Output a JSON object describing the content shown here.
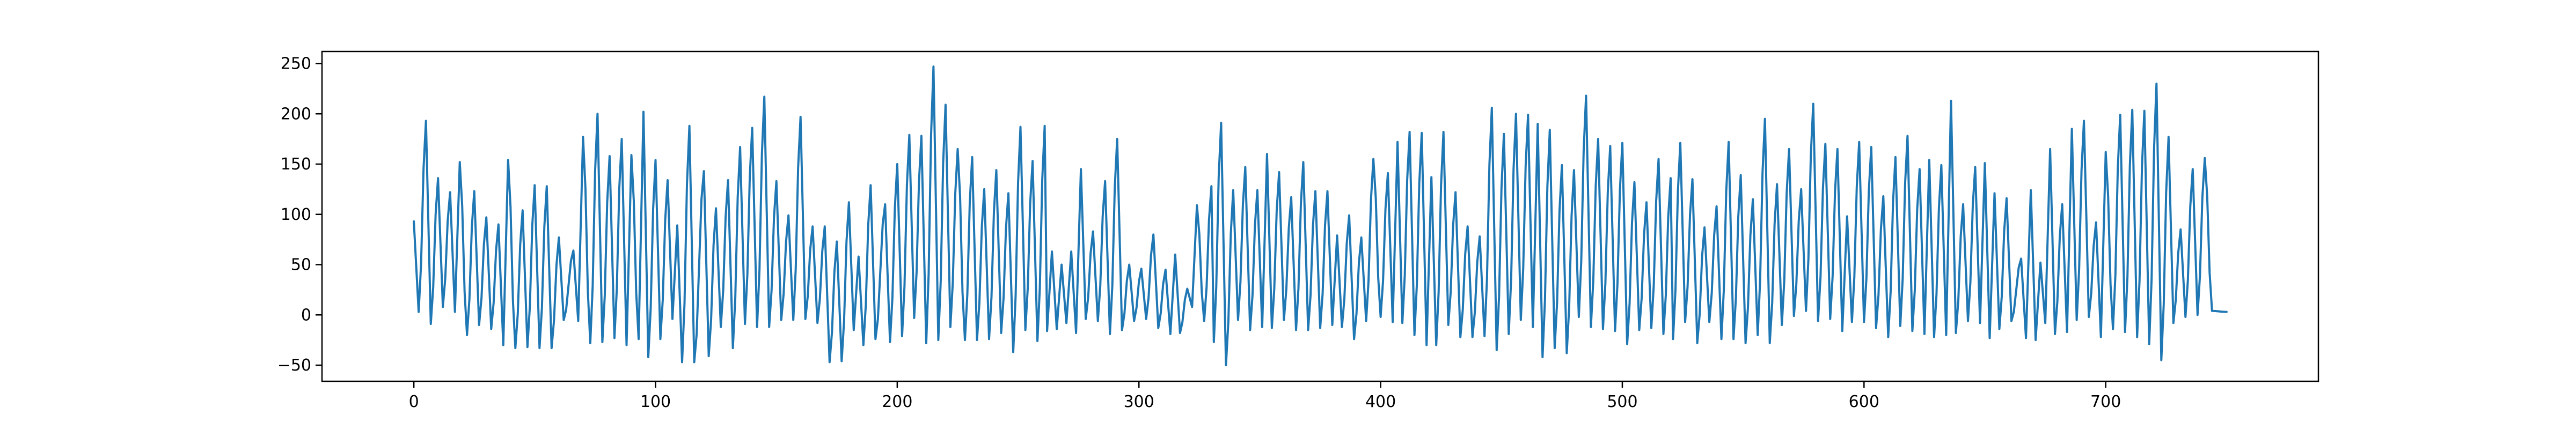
{
  "chart_data": {
    "type": "line",
    "title": "",
    "xlabel": "",
    "ylabel": "",
    "xlim": [
      -38,
      788
    ],
    "ylim": [
      -66,
      262
    ],
    "xticks": [
      0,
      100,
      200,
      300,
      400,
      500,
      600,
      700
    ],
    "yticks": [
      -50,
      0,
      50,
      100,
      150,
      200,
      250
    ],
    "grid": false,
    "legend": "none",
    "x_start": 0,
    "x_end": 750,
    "series": [
      {
        "color": "#1f77b4",
        "peaks": [
          [
            0,
            93
          ],
          [
            5,
            193
          ],
          [
            10,
            136
          ],
          [
            15,
            122
          ],
          [
            19,
            152
          ],
          [
            25,
            123
          ],
          [
            30,
            97
          ],
          [
            35,
            90
          ],
          [
            39,
            154
          ],
          [
            45,
            104
          ],
          [
            50,
            129
          ],
          [
            55,
            128
          ],
          [
            60,
            77
          ],
          [
            66,
            64
          ],
          [
            70,
            177
          ],
          [
            76,
            200
          ],
          [
            81,
            158
          ],
          [
            86,
            175
          ],
          [
            90,
            159
          ],
          [
            95,
            202
          ],
          [
            100,
            154
          ],
          [
            105,
            134
          ],
          [
            109,
            89
          ],
          [
            114,
            188
          ],
          [
            120,
            143
          ],
          [
            125,
            106
          ],
          [
            130,
            134
          ],
          [
            135,
            167
          ],
          [
            140,
            186
          ],
          [
            145,
            217
          ],
          [
            150,
            133
          ],
          [
            155,
            99
          ],
          [
            160,
            197
          ],
          [
            165,
            88
          ],
          [
            170,
            88
          ],
          [
            175,
            73
          ],
          [
            180,
            112
          ],
          [
            184,
            58
          ],
          [
            189,
            129
          ],
          [
            195,
            110
          ],
          [
            200,
            150
          ],
          [
            205,
            179
          ],
          [
            210,
            178
          ],
          [
            215,
            247
          ],
          [
            220,
            209
          ],
          [
            225,
            165
          ],
          [
            231,
            157
          ],
          [
            236,
            125
          ],
          [
            241,
            144
          ],
          [
            246,
            121
          ],
          [
            251,
            187
          ],
          [
            256,
            153
          ],
          [
            261,
            188
          ],
          [
            264,
            63
          ],
          [
            268,
            50
          ],
          [
            272,
            63
          ],
          [
            276,
            145
          ],
          [
            281,
            83
          ],
          [
            286,
            133
          ],
          [
            291,
            175
          ],
          [
            296,
            50
          ],
          [
            301,
            46
          ],
          [
            306,
            80
          ],
          [
            311,
            45
          ],
          [
            315,
            60
          ],
          [
            320,
            26
          ],
          [
            324,
            109
          ],
          [
            330,
            128
          ],
          [
            334,
            191
          ],
          [
            339,
            124
          ],
          [
            344,
            147
          ],
          [
            349,
            124
          ],
          [
            353,
            160
          ],
          [
            358,
            142
          ],
          [
            363,
            117
          ],
          [
            368,
            152
          ],
          [
            373,
            123
          ],
          [
            378,
            123
          ],
          [
            382,
            79
          ],
          [
            387,
            99
          ],
          [
            392,
            77
          ],
          [
            397,
            155
          ],
          [
            403,
            141
          ],
          [
            407,
            172
          ],
          [
            412,
            182
          ],
          [
            417,
            181
          ],
          [
            421,
            137
          ],
          [
            426,
            182
          ],
          [
            431,
            122
          ],
          [
            436,
            88
          ],
          [
            441,
            78
          ],
          [
            446,
            206
          ],
          [
            451,
            180
          ],
          [
            456,
            200
          ],
          [
            461,
            199
          ],
          [
            465,
            190
          ],
          [
            470,
            184
          ],
          [
            475,
            149
          ],
          [
            480,
            144
          ],
          [
            485,
            218
          ],
          [
            490,
            175
          ],
          [
            495,
            168
          ],
          [
            500,
            171
          ],
          [
            505,
            132
          ],
          [
            510,
            112
          ],
          [
            515,
            155
          ],
          [
            520,
            136
          ],
          [
            524,
            171
          ],
          [
            529,
            135
          ],
          [
            534,
            87
          ],
          [
            539,
            108
          ],
          [
            544,
            172
          ],
          [
            549,
            139
          ],
          [
            554,
            115
          ],
          [
            559,
            195
          ],
          [
            564,
            130
          ],
          [
            569,
            165
          ],
          [
            574,
            125
          ],
          [
            579,
            210
          ],
          [
            584,
            170
          ],
          [
            589,
            165
          ],
          [
            593,
            98
          ],
          [
            598,
            172
          ],
          [
            603,
            167
          ],
          [
            608,
            118
          ],
          [
            613,
            157
          ],
          [
            618,
            178
          ],
          [
            623,
            145
          ],
          [
            627,
            154
          ],
          [
            632,
            149
          ],
          [
            636,
            213
          ],
          [
            641,
            110
          ],
          [
            646,
            147
          ],
          [
            650,
            151
          ],
          [
            654,
            121
          ],
          [
            659,
            116
          ],
          [
            665,
            56
          ],
          [
            669,
            124
          ],
          [
            673,
            52
          ],
          [
            677,
            165
          ],
          [
            682,
            110
          ],
          [
            686,
            185
          ],
          [
            691,
            193
          ],
          [
            696,
            92
          ],
          [
            700,
            162
          ],
          [
            706,
            199
          ],
          [
            711,
            204
          ],
          [
            716,
            203
          ],
          [
            721,
            230
          ],
          [
            726,
            177
          ],
          [
            731,
            85
          ],
          [
            736,
            145
          ],
          [
            741,
            156
          ]
        ],
        "troughs": [
          [
            2,
            3
          ],
          [
            7,
            -9
          ],
          [
            12,
            8
          ],
          [
            17,
            3
          ],
          [
            22,
            -20
          ],
          [
            27,
            -10
          ],
          [
            32,
            -14
          ],
          [
            37,
            -30
          ],
          [
            42,
            -33
          ],
          [
            47,
            -32
          ],
          [
            52,
            -33
          ],
          [
            57,
            -33
          ],
          [
            62,
            -5
          ],
          [
            68,
            -6
          ],
          [
            73,
            -28
          ],
          [
            78,
            -27
          ],
          [
            83,
            -23
          ],
          [
            88,
            -30
          ],
          [
            93,
            -24
          ],
          [
            97,
            -42
          ],
          [
            102,
            -24
          ],
          [
            107,
            -4
          ],
          [
            111,
            -47
          ],
          [
            116,
            -47
          ],
          [
            122,
            -41
          ],
          [
            127,
            -12
          ],
          [
            132,
            -33
          ],
          [
            137,
            -9
          ],
          [
            142,
            -12
          ],
          [
            147,
            -12
          ],
          [
            152,
            -5
          ],
          [
            157,
            -5
          ],
          [
            162,
            -4
          ],
          [
            167,
            -8
          ],
          [
            172,
            -47
          ],
          [
            177,
            -46
          ],
          [
            182,
            -15
          ],
          [
            186,
            -30
          ],
          [
            191,
            -24
          ],
          [
            197,
            -27
          ],
          [
            202,
            -21
          ],
          [
            207,
            -3
          ],
          [
            212,
            -28
          ],
          [
            217,
            -25
          ],
          [
            222,
            -12
          ],
          [
            228,
            -25
          ],
          [
            233,
            -25
          ],
          [
            238,
            -24
          ],
          [
            243,
            -18
          ],
          [
            248,
            -37
          ],
          [
            253,
            -15
          ],
          [
            258,
            -26
          ],
          [
            262,
            -16
          ],
          [
            266,
            -14
          ],
          [
            270,
            -8
          ],
          [
            274,
            -18
          ],
          [
            278,
            -4
          ],
          [
            283,
            -6
          ],
          [
            288,
            -19
          ],
          [
            293,
            -15
          ],
          [
            298,
            -6
          ],
          [
            303,
            -4
          ],
          [
            308,
            -13
          ],
          [
            313,
            -19
          ],
          [
            317,
            -18
          ],
          [
            322,
            8
          ],
          [
            327,
            -6
          ],
          [
            331,
            -27
          ],
          [
            336,
            -50
          ],
          [
            341,
            -5
          ],
          [
            346,
            -15
          ],
          [
            351,
            -12
          ],
          [
            355,
            -13
          ],
          [
            360,
            -5
          ],
          [
            365,
            -15
          ],
          [
            370,
            -15
          ],
          [
            375,
            -13
          ],
          [
            380,
            -10
          ],
          [
            384,
            -12
          ],
          [
            389,
            -24
          ],
          [
            394,
            -6
          ],
          [
            400,
            -2
          ],
          [
            405,
            -7
          ],
          [
            409,
            -8
          ],
          [
            414,
            -20
          ],
          [
            419,
            -30
          ],
          [
            423,
            -30
          ],
          [
            428,
            -10
          ],
          [
            433,
            -22
          ],
          [
            438,
            -22
          ],
          [
            443,
            -21
          ],
          [
            448,
            -35
          ],
          [
            453,
            -19
          ],
          [
            458,
            -5
          ],
          [
            463,
            -12
          ],
          [
            467,
            -42
          ],
          [
            472,
            -33
          ],
          [
            477,
            -38
          ],
          [
            482,
            -2
          ],
          [
            487,
            -12
          ],
          [
            492,
            -14
          ],
          [
            497,
            -16
          ],
          [
            502,
            -29
          ],
          [
            507,
            -15
          ],
          [
            512,
            -13
          ],
          [
            517,
            -19
          ],
          [
            521,
            -24
          ],
          [
            526,
            -7
          ],
          [
            531,
            -28
          ],
          [
            536,
            -7
          ],
          [
            541,
            -24
          ],
          [
            546,
            -24
          ],
          [
            551,
            -28
          ],
          [
            556,
            -20
          ],
          [
            561,
            -28
          ],
          [
            566,
            -10
          ],
          [
            571,
            -1
          ],
          [
            576,
            4
          ],
          [
            581,
            -6
          ],
          [
            586,
            -4
          ],
          [
            591,
            -16
          ],
          [
            595,
            -7
          ],
          [
            600,
            -7
          ],
          [
            605,
            -13
          ],
          [
            610,
            -22
          ],
          [
            615,
            -11
          ],
          [
            620,
            -16
          ],
          [
            625,
            -19
          ],
          [
            629,
            -22
          ],
          [
            634,
            -20
          ],
          [
            638,
            -18
          ],
          [
            643,
            -6
          ],
          [
            648,
            -8
          ],
          [
            652,
            -23
          ],
          [
            656,
            -14
          ],
          [
            661,
            -6
          ],
          [
            667,
            -23
          ],
          [
            671,
            -25
          ],
          [
            675,
            -8
          ],
          [
            679,
            -19
          ],
          [
            684,
            -17
          ],
          [
            688,
            -5
          ],
          [
            693,
            -2
          ],
          [
            698,
            -22
          ],
          [
            703,
            -14
          ],
          [
            708,
            -17
          ],
          [
            713,
            -22
          ],
          [
            718,
            -29
          ],
          [
            723,
            -45
          ],
          [
            728,
            -8
          ],
          [
            733,
            -2
          ],
          [
            738,
            0
          ],
          [
            744,
            4
          ]
        ],
        "end_value": 3
      }
    ]
  }
}
